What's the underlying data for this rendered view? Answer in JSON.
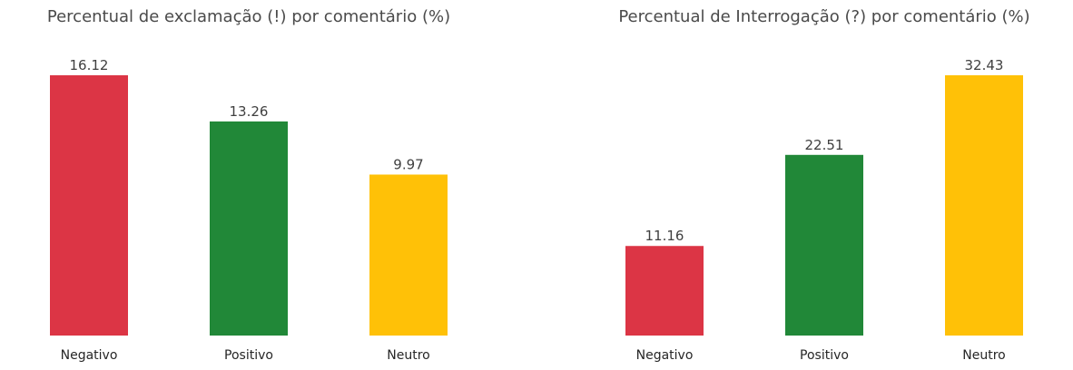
{
  "chart_data": [
    {
      "type": "bar",
      "title": "Percentual de exclamação (!) por comentário (%)",
      "categories": [
        "Negativo",
        "Positivo",
        "Neutro"
      ],
      "values": [
        16.12,
        13.26,
        9.97
      ],
      "value_labels": [
        "16.12",
        "13.26",
        "9.97"
      ],
      "colors": [
        "#dc3545",
        "#218838",
        "#ffc107"
      ],
      "xlabel": "",
      "ylabel": "",
      "ylim": [
        0,
        16.12
      ],
      "grid": false
    },
    {
      "type": "bar",
      "title": "Percentual de Interrogação (?) por comentário (%)",
      "categories": [
        "Negativo",
        "Positivo",
        "Neutro"
      ],
      "values": [
        11.16,
        22.51,
        32.43
      ],
      "value_labels": [
        "11.16",
        "22.51",
        "32.43"
      ],
      "colors": [
        "#dc3545",
        "#218838",
        "#ffc107"
      ],
      "xlabel": "",
      "ylabel": "",
      "ylim": [
        0,
        32.43
      ],
      "grid": false
    }
  ]
}
